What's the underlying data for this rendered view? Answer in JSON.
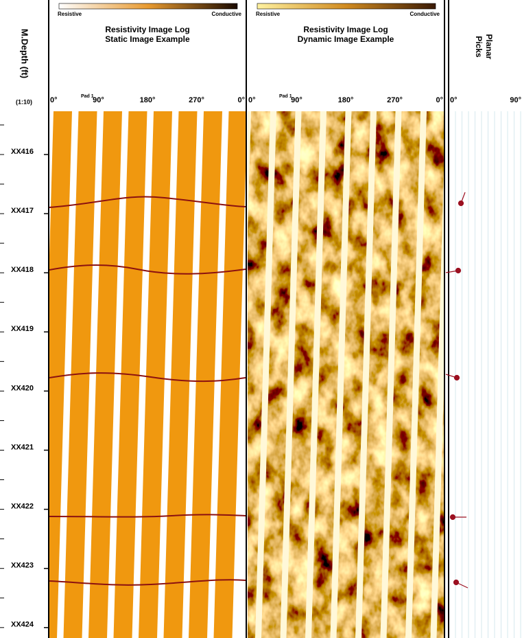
{
  "depth_track": {
    "title": "M.Depth (ft)",
    "scale": "(1:10)",
    "labels": [
      "XX416",
      "XX417",
      "XX418",
      "XX419",
      "XX420",
      "XX421",
      "XX422",
      "XX423",
      "XX424"
    ]
  },
  "tracks": [
    {
      "title": "Resistivity Image Log",
      "subtitle": "Static Image Example",
      "scale_left": "Resistive",
      "scale_right": "Conductive",
      "pad": "Pad 1",
      "azimuths": [
        "0°",
        "90°",
        "180°",
        "270°",
        "0°"
      ]
    },
    {
      "title": "Resistivity Image Log",
      "subtitle": "Dynamic Image Example",
      "scale_left": "Resistive",
      "scale_right": "Conductive",
      "pad": "Pad 1",
      "azimuths": [
        "0°",
        "90°",
        "180°",
        "270°",
        "0°"
      ]
    }
  ],
  "planar": {
    "title": "Planar",
    "subtitle": "Picks",
    "azimuths": [
      "0°",
      "90°"
    ]
  }
}
